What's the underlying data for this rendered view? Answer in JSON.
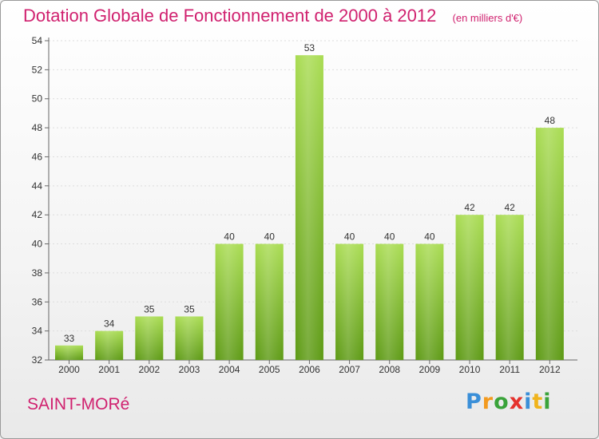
{
  "header": {
    "title": "Dotation Globale de Fonctionnement de 2000 à 2012",
    "subtitle": "(en milliers d'€)"
  },
  "footer": {
    "commune": "SAINT-MORé",
    "logo": [
      "P",
      "r",
      "o",
      "x",
      "i",
      "t",
      "i"
    ]
  },
  "colors": {
    "bar_light": "#a9dc52",
    "bar_dark": "#5d9a14",
    "title": "#d0216f",
    "axis": "#666666",
    "grid": "#dddddd"
  },
  "chart_data": {
    "type": "bar",
    "categories": [
      "2000",
      "2001",
      "2002",
      "2003",
      "2004",
      "2005",
      "2006",
      "2007",
      "2008",
      "2009",
      "2010",
      "2011",
      "2012"
    ],
    "values": [
      33,
      34,
      35,
      35,
      40,
      40,
      53,
      40,
      40,
      40,
      42,
      42,
      48
    ],
    "title": "Dotation Globale de Fonctionnement de 2000 à 2012",
    "subtitle": "(en milliers d'€)",
    "ylim": [
      32,
      54
    ],
    "yticks": [
      32,
      34,
      36,
      38,
      40,
      42,
      44,
      46,
      48,
      50,
      52,
      54
    ],
    "grid": true,
    "data_labels": true
  }
}
